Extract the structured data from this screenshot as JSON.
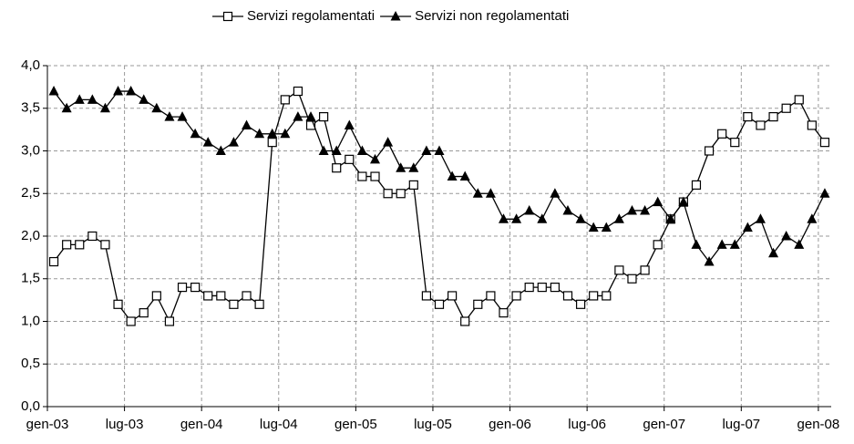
{
  "chart_data": {
    "type": "line",
    "categories": [
      "gen-03",
      null,
      null,
      null,
      null,
      null,
      "lug-03",
      null,
      null,
      null,
      null,
      null,
      "gen-04",
      null,
      null,
      null,
      null,
      null,
      "lug-04",
      null,
      null,
      null,
      null,
      null,
      "gen-05",
      null,
      null,
      null,
      null,
      null,
      "lug-05",
      null,
      null,
      null,
      null,
      null,
      "gen-06",
      null,
      null,
      null,
      null,
      null,
      "lug-06",
      null,
      null,
      null,
      null,
      null,
      "gen-07",
      null,
      null,
      null,
      null,
      null,
      "lug-07",
      null,
      null,
      null,
      null,
      null,
      "gen-08"
    ],
    "series": [
      {
        "name": "Servizi regolamentati",
        "color": "#000000",
        "marker": "square",
        "values": [
          1.7,
          1.9,
          1.9,
          2.0,
          1.9,
          1.2,
          1.0,
          1.1,
          1.3,
          1.0,
          1.4,
          1.4,
          1.3,
          1.3,
          1.2,
          1.3,
          1.2,
          3.1,
          3.6,
          3.7,
          3.3,
          3.4,
          2.8,
          2.9,
          2.7,
          2.7,
          2.5,
          2.5,
          2.6,
          1.3,
          1.2,
          1.3,
          1.0,
          1.2,
          1.3,
          1.1,
          1.3,
          1.4,
          1.4,
          1.4,
          1.3,
          1.2,
          1.3,
          1.3,
          1.6,
          1.5,
          1.6,
          1.9,
          2.2,
          2.4,
          2.6,
          3.0,
          3.2,
          3.1,
          3.4,
          3.3,
          3.4,
          3.5,
          3.6,
          3.3,
          3.1
        ]
      },
      {
        "name": "Servizi non regolamentati",
        "color": "#000000",
        "marker": "triangle",
        "values": [
          3.7,
          3.5,
          3.6,
          3.6,
          3.5,
          3.7,
          3.7,
          3.6,
          3.5,
          3.4,
          3.4,
          3.2,
          3.1,
          3.0,
          3.1,
          3.3,
          3.2,
          3.2,
          3.2,
          3.4,
          3.4,
          3.0,
          3.0,
          3.3,
          3.0,
          2.9,
          3.1,
          2.8,
          2.8,
          3.0,
          3.0,
          2.7,
          2.7,
          2.5,
          2.5,
          2.2,
          2.2,
          2.3,
          2.2,
          2.5,
          2.3,
          2.2,
          2.1,
          2.1,
          2.2,
          2.3,
          2.3,
          2.4,
          2.2,
          2.4,
          1.9,
          1.7,
          1.9,
          1.9,
          2.1,
          2.2,
          1.8,
          2.0,
          1.9,
          2.2,
          2.5
        ]
      }
    ],
    "ylim": [
      0,
      4
    ],
    "yticks": [
      {
        "value": 0,
        "label": "0,0"
      },
      {
        "value": 0.5,
        "label": "0,5"
      },
      {
        "value": 1,
        "label": "1,0"
      },
      {
        "value": 1.5,
        "label": "1,5"
      },
      {
        "value": 2,
        "label": "2,0"
      },
      {
        "value": 2.5,
        "label": "2,5"
      },
      {
        "value": 3,
        "label": "3,0"
      },
      {
        "value": 3.5,
        "label": "3,5"
      },
      {
        "value": 4,
        "label": "4,0"
      }
    ],
    "grid": true,
    "legend": "top"
  }
}
